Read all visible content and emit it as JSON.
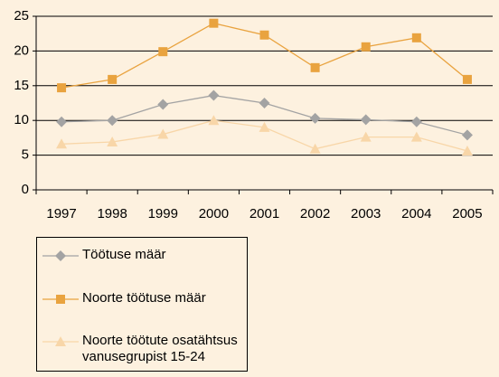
{
  "chart_data": {
    "type": "line",
    "categories": [
      "1997",
      "1998",
      "1999",
      "2000",
      "2001",
      "2002",
      "2003",
      "2004",
      "2005"
    ],
    "series": [
      {
        "name": "Töötuse määr",
        "color": "#a3a3a3",
        "marker": "diamond",
        "values": [
          9.8,
          10.0,
          12.3,
          13.6,
          12.5,
          10.3,
          10.1,
          9.8,
          7.9
        ]
      },
      {
        "name": "Noorte töötuse määr",
        "color": "#e9a33f",
        "marker": "square",
        "values": [
          14.7,
          15.9,
          19.9,
          24.0,
          22.3,
          17.6,
          20.6,
          21.9,
          15.9
        ]
      },
      {
        "name": "Noorte töötute osatähtsus vanusegrupist 15-24",
        "color": "#f8d6a8",
        "marker": "triangle",
        "values": [
          6.6,
          6.9,
          8.0,
          10.0,
          9.0,
          5.9,
          7.6,
          7.6,
          5.6
        ]
      }
    ],
    "ylim": [
      0,
      25
    ],
    "yticks": [
      0,
      5,
      10,
      15,
      20,
      25
    ],
    "grid": true,
    "legend": "bottom-left"
  }
}
